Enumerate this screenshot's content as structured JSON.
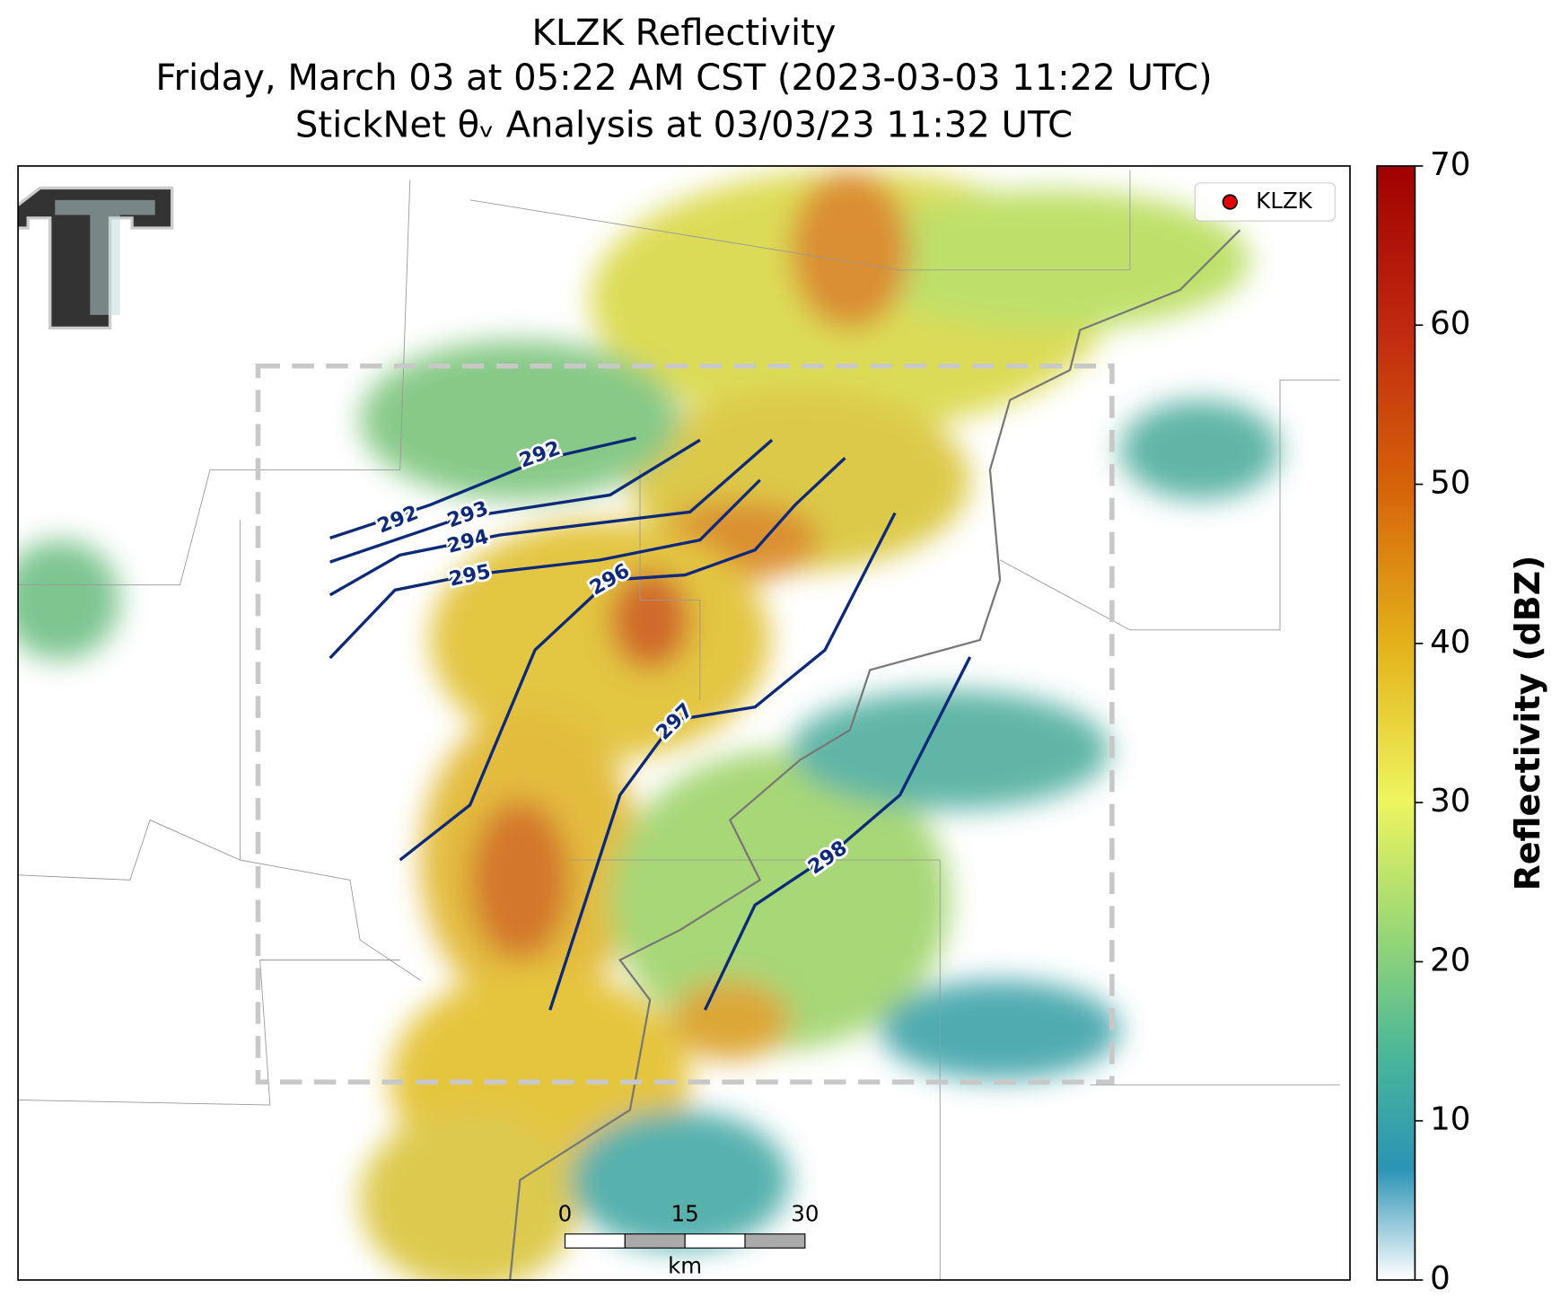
{
  "title_lines": [
    "KLZK Reflectivity",
    "Friday, March 03 at 05:22 AM CST (2023-03-03 11:22 UTC)",
    "StickNet θᵥ Analysis at 03/03/23 11:32 UTC"
  ],
  "legend": {
    "label": "KLZK",
    "color": "#e00000"
  },
  "contours": {
    "color": "#0d2a7a",
    "levels": [
      292,
      293,
      294,
      295,
      296,
      297,
      298
    ]
  },
  "colorbar": {
    "label": "Reflectivity (dBZ)",
    "lim": [
      0,
      70
    ],
    "ticks": [
      0,
      10,
      20,
      30,
      40,
      50,
      60,
      70
    ]
  },
  "scale_bar": {
    "ticks": [
      0,
      15,
      30
    ],
    "unit": "km"
  }
}
